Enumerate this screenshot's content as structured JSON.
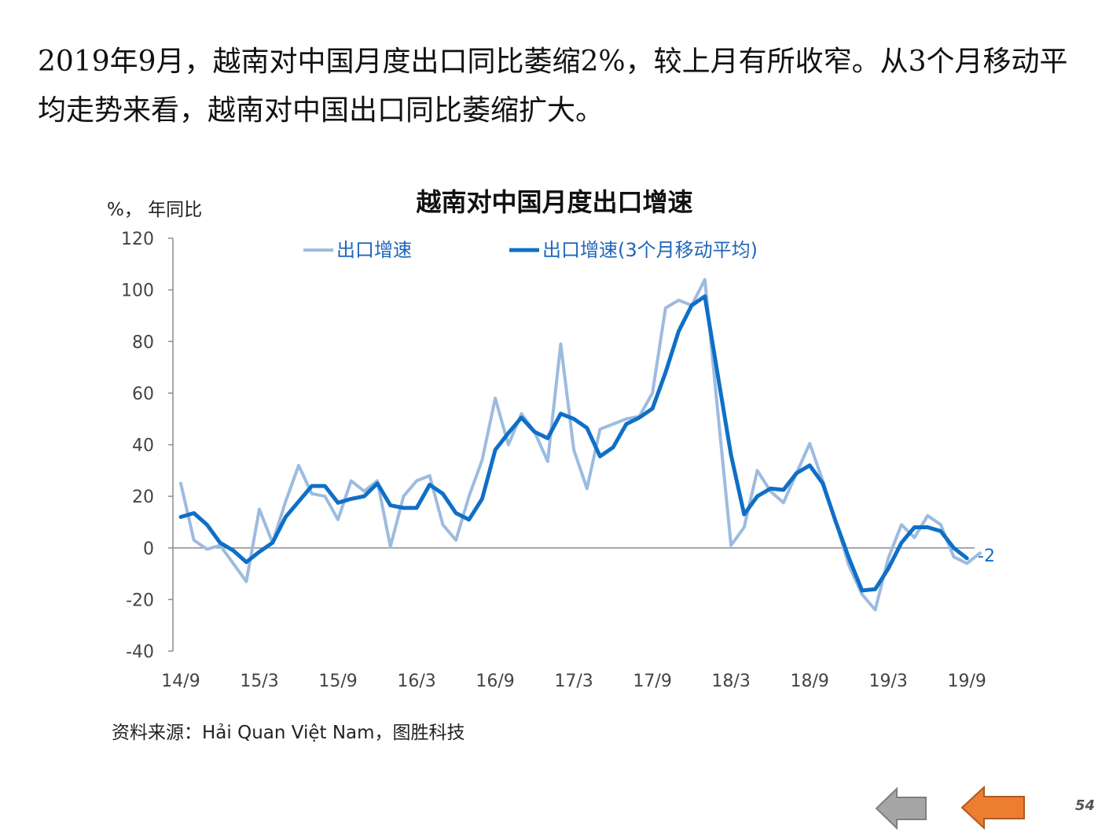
{
  "headline": "2019年9月，越南对中国月度出口同比萎缩2%，较上月有所收窄。从3个月移动平均走势来看，越南对中国出口同比萎缩扩大。",
  "footer": {
    "source": "资料来源：Hải Quan Việt Nam，图胜科技",
    "page_number": "54",
    "prev_button_color": "#a6a6a6",
    "next_button_color": "#ed7d31"
  },
  "chart_data": {
    "type": "line",
    "title": "越南对中国月度出口增速",
    "ylabel": "%， 年同比",
    "ylim": [
      -40,
      120
    ],
    "yticks": [
      120,
      100,
      80,
      60,
      40,
      20,
      0,
      -20,
      -40
    ],
    "xtick_labels": [
      "14/9",
      "15/3",
      "15/9",
      "16/3",
      "16/9",
      "17/3",
      "17/9",
      "18/3",
      "18/9",
      "19/3",
      "19/9"
    ],
    "legend_position": "top",
    "end_label": "-2",
    "series": [
      {
        "name": "出口增速",
        "color": "#9dbbe0",
        "values": [
          25,
          3,
          -0.5,
          1,
          -6,
          -13,
          15,
          2,
          18,
          32,
          21,
          20,
          11,
          26,
          22,
          26,
          0.5,
          20,
          26,
          28,
          9,
          3,
          20,
          34,
          58,
          40,
          52,
          45,
          33.5,
          79,
          38,
          23,
          46,
          48,
          50,
          51,
          60,
          93,
          96,
          94,
          104,
          52,
          1,
          8,
          30,
          22,
          17.5,
          29,
          40.5,
          26,
          10,
          -7,
          -18,
          -24,
          -4,
          9,
          4,
          12.5,
          9,
          -3.5,
          -6,
          -2
        ],
        "line_width": 4
      },
      {
        "name": "出口增速(3个月移动平均)",
        "color": "#0f6fc6",
        "values": [
          12,
          13.5,
          9,
          2,
          -1,
          -5.5,
          -1.5,
          2,
          12,
          18,
          24,
          24,
          17.5,
          19,
          20,
          25,
          16.5,
          15.5,
          15.5,
          24.5,
          21,
          13.5,
          11,
          19,
          38,
          44.5,
          50.5,
          45,
          42.5,
          52,
          50,
          46.5,
          35.5,
          39,
          48,
          50.5,
          54,
          68,
          84,
          94,
          97.5,
          66.5,
          36,
          13,
          20,
          23,
          22.5,
          29,
          32,
          25,
          10,
          -4,
          -16.5,
          -16,
          -8,
          2,
          8,
          8,
          6.5,
          0,
          -4
        ],
        "line_width": 5
      }
    ]
  }
}
